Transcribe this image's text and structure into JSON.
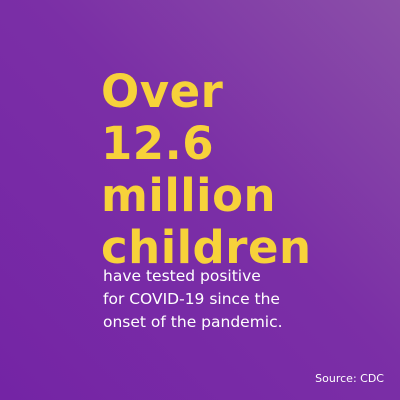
{
  "headline": {
    "lines": [
      "Over",
      "12.6",
      "million",
      "children"
    ]
  },
  "body": {
    "lines": [
      "have tested positive",
      "for COVID-19 since the",
      "onset of the pandemic."
    ]
  },
  "source": "Source: CDC"
}
